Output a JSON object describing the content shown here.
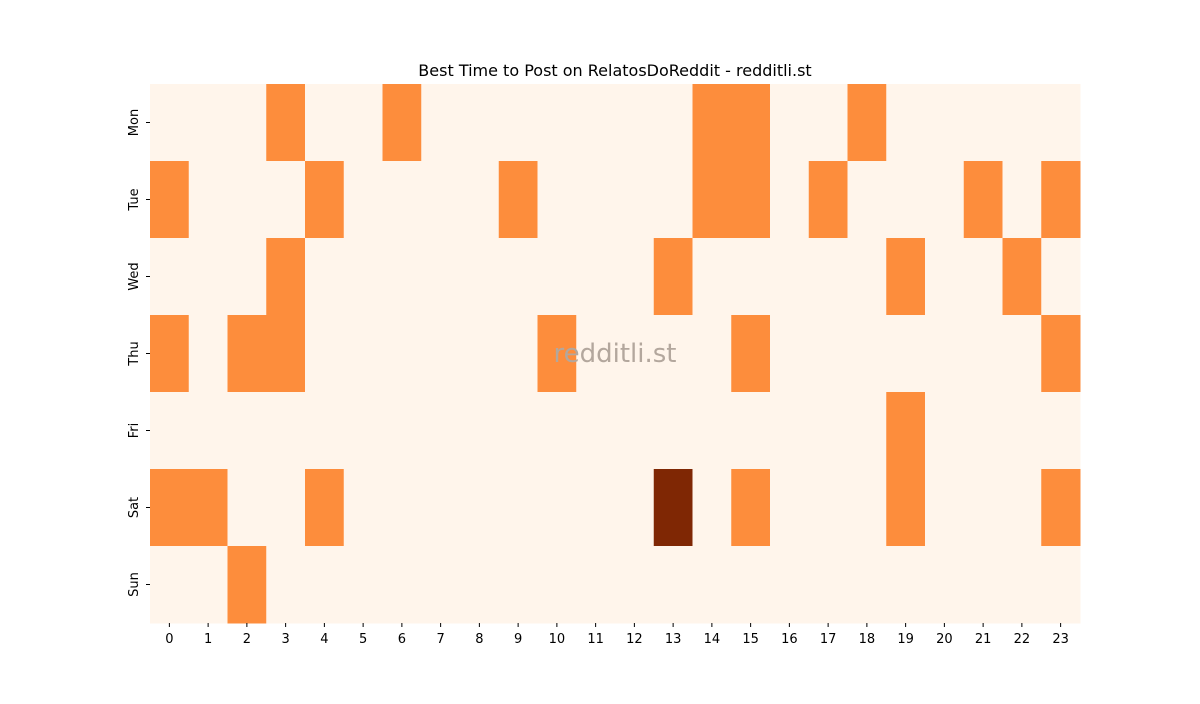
{
  "chart_data": {
    "type": "heatmap",
    "title": "Best Time to Post on RelatosDoReddit - redditli.st",
    "watermark": "redditli.st",
    "xlabel": "",
    "ylabel": "",
    "x": [
      "0",
      "1",
      "2",
      "3",
      "4",
      "5",
      "6",
      "7",
      "8",
      "9",
      "10",
      "11",
      "12",
      "13",
      "14",
      "15",
      "16",
      "17",
      "18",
      "19",
      "20",
      "21",
      "22",
      "23"
    ],
    "y": [
      "Mon",
      "Tue",
      "Wed",
      "Thu",
      "Fri",
      "Sat",
      "Sun"
    ],
    "values": [
      [
        0,
        0,
        0,
        1,
        0,
        0,
        1,
        0,
        0,
        0,
        0,
        0,
        0,
        0,
        1,
        1,
        0,
        0,
        1,
        0,
        0,
        0,
        0,
        0
      ],
      [
        1,
        0,
        0,
        0,
        1,
        0,
        0,
        0,
        0,
        1,
        0,
        0,
        0,
        0,
        1,
        1,
        0,
        1,
        0,
        0,
        0,
        1,
        0,
        1
      ],
      [
        0,
        0,
        0,
        1,
        0,
        0,
        0,
        0,
        0,
        0,
        0,
        0,
        0,
        1,
        0,
        0,
        0,
        0,
        0,
        1,
        0,
        0,
        1,
        0
      ],
      [
        1,
        0,
        1,
        1,
        0,
        0,
        0,
        0,
        0,
        0,
        1,
        0,
        0,
        0,
        0,
        1,
        0,
        0,
        0,
        0,
        0,
        0,
        0,
        1
      ],
      [
        0,
        0,
        0,
        0,
        0,
        0,
        0,
        0,
        0,
        0,
        0,
        0,
        0,
        0,
        0,
        0,
        0,
        0,
        0,
        1,
        0,
        0,
        0,
        0
      ],
      [
        1,
        1,
        0,
        0,
        1,
        0,
        0,
        0,
        0,
        0,
        0,
        0,
        0,
        2,
        0,
        1,
        0,
        0,
        0,
        1,
        0,
        0,
        0,
        1
      ],
      [
        0,
        0,
        1,
        0,
        0,
        0,
        0,
        0,
        0,
        0,
        0,
        0,
        0,
        0,
        0,
        0,
        0,
        0,
        0,
        0,
        0,
        0,
        0,
        0
      ]
    ],
    "value_colors": {
      "0": "#fff5eb",
      "1": "#fd8d3c",
      "2": "#7f2704"
    },
    "colormap": "Oranges",
    "colorbar": false
  }
}
